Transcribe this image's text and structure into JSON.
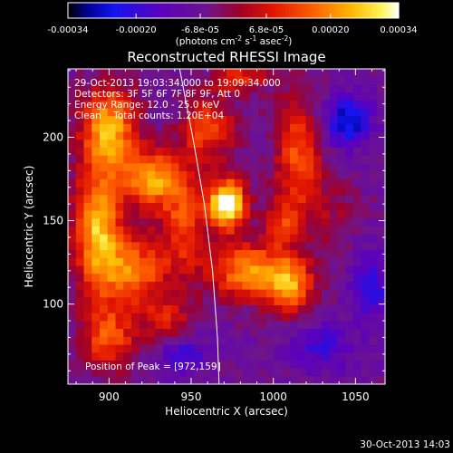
{
  "colorbar": {
    "ticks": [
      "-0.00034",
      "-0.00020",
      "-6.8e-05",
      "6.8e-05",
      "0.00020",
      "0.00034"
    ],
    "tick_values": [
      -0.00034,
      -0.0002,
      -6.8e-05,
      6.8e-05,
      0.0002,
      0.00034
    ],
    "range": [
      -0.00034,
      0.00034
    ],
    "units_main": "(photons cm",
    "units_sup1": "-2",
    "units_mid": " s",
    "units_sup2": "-1",
    "units_end": " asec",
    "units_sup3": "-2",
    "units_close": ")",
    "colormap": "IDL color table 3-like (black-blue-purple-red-orange-yellow-white)"
  },
  "chart_data": {
    "type": "heatmap",
    "title": "Reconstructed RHESSI Image",
    "xlabel": "Heliocentric X (arcsec)",
    "ylabel": "Heliocentric Y (arcsec)",
    "xlim": [
      875,
      1068
    ],
    "ylim": [
      52,
      241
    ],
    "xticks": [
      "900",
      "950",
      "1000",
      "1050"
    ],
    "xtick_values": [
      900,
      950,
      1000,
      1050
    ],
    "yticks": [
      "100",
      "150",
      "200"
    ],
    "ytick_values": [
      100,
      150,
      200
    ],
    "info_lines": [
      "29-Oct-2013 19:03:34.000 to 19:09:34.000",
      "Detectors: 3F 5F 6F 7F 8F 9F, Att 0",
      "Energy Range: 12.0 - 25.0 keV",
      "Clean    Total counts: 1.20E+04"
    ],
    "peak_label": "Position of Peak = [972,159]",
    "peak": [
      972,
      159
    ],
    "limb_curve": [
      [
        943,
        241
      ],
      [
        951,
        200
      ],
      [
        958,
        160
      ],
      [
        963,
        120
      ],
      [
        966,
        80
      ],
      [
        967,
        52
      ]
    ],
    "blobs": [
      {
        "x": 900,
        "y": 205,
        "sx": 12,
        "sy": 18,
        "amp": 1.6
      },
      {
        "x": 893,
        "y": 145,
        "sx": 10,
        "sy": 25,
        "amp": 1.7
      },
      {
        "x": 925,
        "y": 175,
        "sx": 12,
        "sy": 12,
        "amp": 1.5
      },
      {
        "x": 915,
        "y": 120,
        "sx": 14,
        "sy": 14,
        "amp": 1.3
      },
      {
        "x": 945,
        "y": 150,
        "sx": 10,
        "sy": 22,
        "amp": 1.0
      },
      {
        "x": 972,
        "y": 160,
        "sx": 8,
        "sy": 10,
        "amp": 2.4
      },
      {
        "x": 960,
        "y": 205,
        "sx": 12,
        "sy": 14,
        "amp": 1.0
      },
      {
        "x": 935,
        "y": 90,
        "sx": 10,
        "sy": 10,
        "amp": 0.8
      },
      {
        "x": 900,
        "y": 80,
        "sx": 12,
        "sy": 14,
        "amp": 1.1
      },
      {
        "x": 985,
        "y": 120,
        "sx": 18,
        "sy": 12,
        "amp": 1.4
      },
      {
        "x": 1010,
        "y": 110,
        "sx": 10,
        "sy": 12,
        "amp": 1.3
      },
      {
        "x": 1015,
        "y": 190,
        "sx": 10,
        "sy": 24,
        "amp": 1.1
      },
      {
        "x": 1005,
        "y": 150,
        "sx": 8,
        "sy": 10,
        "amp": 0.8
      },
      {
        "x": 980,
        "y": 235,
        "sx": 12,
        "sy": 6,
        "amp": 0.9
      },
      {
        "x": 1035,
        "y": 155,
        "sx": 12,
        "sy": 16,
        "amp": 0.4
      },
      {
        "x": 1045,
        "y": 210,
        "sx": 10,
        "sy": 10,
        "amp": -1.2
      },
      {
        "x": 1060,
        "y": 110,
        "sx": 8,
        "sy": 14,
        "amp": -0.8
      },
      {
        "x": 1030,
        "y": 75,
        "sx": 14,
        "sy": 10,
        "amp": -0.6
      },
      {
        "x": 945,
        "y": 70,
        "sx": 10,
        "sy": 8,
        "amp": -0.7
      }
    ]
  },
  "footer": {
    "timestamp": "30-Oct-2013 14:03"
  }
}
